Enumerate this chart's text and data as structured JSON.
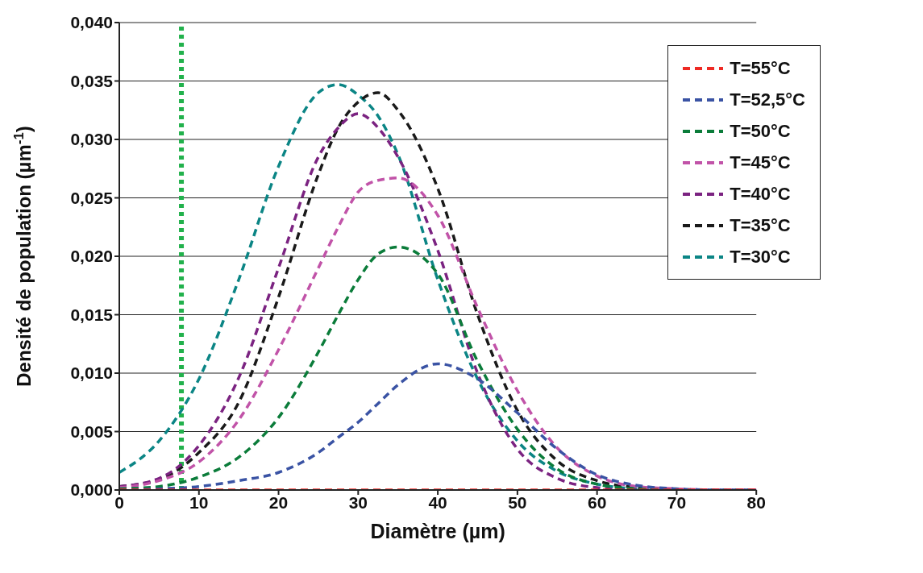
{
  "chart_data": {
    "type": "line",
    "xlabel": "Diamètre (µm)",
    "ylabel": "Densité de population (µm$^{-1}$)",
    "x": [
      0,
      5,
      10,
      15,
      20,
      25,
      27.5,
      30,
      32.5,
      35,
      40,
      45,
      50,
      55,
      60,
      65,
      70,
      75,
      80
    ],
    "series": [
      {
        "name": "T=55°C",
        "color": "#ee2a24",
        "values": [
          0,
          0,
          0,
          0,
          0,
          0,
          0,
          0,
          0,
          0,
          0,
          0,
          0,
          0,
          0,
          0,
          0,
          0,
          0
        ]
      },
      {
        "name": "T=52,5°C",
        "color": "#3a53a4",
        "values": [
          0,
          0.0001,
          0.0003,
          0.0008,
          0.0015,
          0.0032,
          0.0045,
          0.0058,
          0.0074,
          0.009,
          0.0108,
          0.0095,
          0.0066,
          0.0035,
          0.0013,
          0.0004,
          0.0001,
          0,
          0
        ]
      },
      {
        "name": "T=50°C",
        "color": "#0b7c3a",
        "values": [
          0.0001,
          0.0003,
          0.0011,
          0.0028,
          0.0062,
          0.0118,
          0.015,
          0.018,
          0.0202,
          0.0208,
          0.0185,
          0.011,
          0.0052,
          0.0018,
          0.0005,
          0.0001,
          0,
          null,
          null
        ]
      },
      {
        "name": "T=45°C",
        "color": "#c153a8",
        "values": [
          0.0002,
          0.0008,
          0.0024,
          0.006,
          0.012,
          0.019,
          0.0225,
          0.0255,
          0.0265,
          0.0267,
          0.0235,
          0.0156,
          0.0085,
          0.0036,
          0.0012,
          0.0003,
          0.0001,
          0,
          0
        ]
      },
      {
        "name": "T=40°C",
        "color": "#7b2381",
        "values": [
          0.0003,
          0.001,
          0.0038,
          0.0096,
          0.019,
          0.0285,
          0.031,
          0.0322,
          0.031,
          0.0285,
          0.0205,
          0.01,
          0.0035,
          0.001,
          0.0002,
          0,
          0,
          0,
          0
        ]
      },
      {
        "name": "T=35°C",
        "color": "#1a1a1a",
        "values": [
          0.0003,
          0.0009,
          0.0032,
          0.0075,
          0.0165,
          0.027,
          0.031,
          0.0332,
          0.034,
          0.0325,
          0.0258,
          0.015,
          0.0068,
          0.0025,
          0.0008,
          0.0002,
          0,
          0,
          0
        ]
      },
      {
        "name": "T=30°C",
        "color": "#0b8585",
        "values": [
          0.0015,
          0.0042,
          0.0095,
          0.018,
          0.0277,
          0.034,
          0.0347,
          0.0338,
          0.032,
          0.0287,
          0.018,
          0.0095,
          0.0042,
          0.0016,
          0.0005,
          0.0001,
          0,
          null,
          null
        ]
      }
    ],
    "xlim": [
      0,
      80
    ],
    "xticks": [
      0,
      10,
      20,
      30,
      40,
      50,
      60,
      70,
      80
    ],
    "ylim": [
      0,
      0.04
    ],
    "yticks": [
      {
        "value": 0,
        "label": "0,000"
      },
      {
        "value": 0.005,
        "label": "0,005"
      },
      {
        "value": 0.01,
        "label": "0,010"
      },
      {
        "value": 0.015,
        "label": "0,015"
      },
      {
        "value": 0.02,
        "label": "0,020"
      },
      {
        "value": 0.025,
        "label": "0,025"
      },
      {
        "value": 0.03,
        "label": "0,030"
      },
      {
        "value": 0.035,
        "label": "0,035"
      },
      {
        "value": 0.04,
        "label": "0,040"
      }
    ],
    "ref_lines": [
      {
        "axis": "x",
        "value": 7.8,
        "color": "#22b14c",
        "line_style": "dotted"
      }
    ],
    "grid": "y",
    "legend": "top right",
    "marker": "none",
    "line_style": "dashed"
  }
}
